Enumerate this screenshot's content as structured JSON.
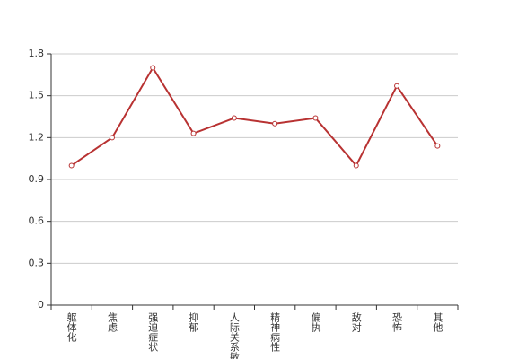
{
  "chart_data": {
    "type": "line",
    "categories": [
      "躯体化",
      "焦虑",
      "强迫症状",
      "抑郁",
      "人际关系敏感",
      "精神病性",
      "偏执",
      "敌对",
      "恐怖",
      "其他"
    ],
    "series": [
      {
        "color": "#b83232",
        "values": [
          1.0,
          1.2,
          1.7,
          1.23,
          1.34,
          1.3,
          1.34,
          1.0,
          1.57,
          1.14
        ]
      }
    ],
    "ylim": [
      0,
      1.8
    ],
    "yticks": [
      0,
      0.3,
      0.6,
      0.9,
      1.2,
      1.5,
      1.8
    ],
    "grid": true
  }
}
